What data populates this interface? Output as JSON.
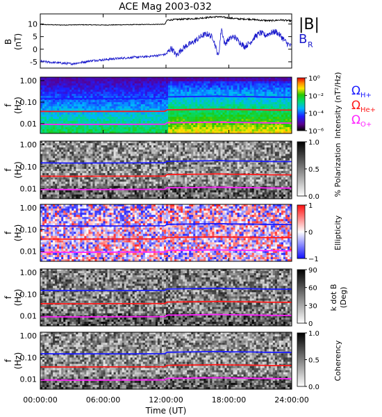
{
  "title": "ACE Mag 2003-032",
  "colors": {
    "b_total": "#000000",
    "b_r": "#1a1acc",
    "h_line": "#1a1aff",
    "he_line": "#ff1a1a",
    "o_line": "#ff22ff"
  },
  "x_axis": {
    "ticks": [
      "00:00:00",
      "06:00:00",
      "12:00:00",
      "18:00:00",
      "24:00:00"
    ],
    "label": "Time (UT)"
  },
  "chart_data": [
    {
      "type": "line",
      "panel": "magnetic-field",
      "ylabel": [
        "B",
        "(nT)"
      ],
      "y_ticks": [
        "10",
        "5",
        "0",
        "-5"
      ],
      "ylim": [
        -7.5,
        14
      ],
      "x_units": "hours UT",
      "xlim": [
        0,
        24
      ],
      "legend": [
        "|B|",
        "B_R"
      ],
      "series": [
        {
          "name": "|B|",
          "x": [
            0,
            2,
            4,
            6,
            8,
            10,
            11.9,
            12.1,
            13,
            14,
            15,
            16,
            17,
            18,
            19,
            20,
            21,
            22,
            23,
            24
          ],
          "y": [
            9.8,
            9.6,
            9.7,
            9.6,
            9.7,
            9.8,
            9.9,
            11.5,
            11.8,
            12.0,
            12.2,
            12.6,
            12.9,
            12.4,
            12.0,
            11.9,
            11.5,
            11.3,
            11.6,
            11.2
          ]
        },
        {
          "name": "B_R",
          "x": [
            0,
            1,
            2,
            3,
            4,
            5,
            6,
            7,
            8,
            9,
            10,
            11,
            12,
            12.5,
            13,
            13.5,
            14,
            14.5,
            15,
            15.5,
            16,
            16.5,
            17,
            17.3,
            17.6,
            18,
            18.5,
            19,
            19.5,
            20,
            20.5,
            21,
            21.5,
            22,
            22.5,
            23,
            23.5,
            24
          ],
          "y": [
            -4.8,
            -5.2,
            -5.5,
            -5.8,
            -5.2,
            -4.5,
            -4.2,
            -3.8,
            -3.5,
            -3.2,
            -3.0,
            -2.6,
            -2.0,
            0.5,
            -2.5,
            0.0,
            1.5,
            2.5,
            4.0,
            5.5,
            6.0,
            4.5,
            -3.0,
            8.5,
            2.0,
            4.0,
            5.0,
            3.0,
            1.0,
            2.5,
            5.0,
            6.5,
            5.5,
            6.5,
            7.0,
            5.0,
            2.5,
            1.0
          ]
        }
      ]
    },
    {
      "type": "heatmap",
      "panel": "intensity",
      "ylabel": [
        "f",
        "(Hz)"
      ],
      "y_ticks": [
        "1.00",
        "0.10",
        "0.01"
      ],
      "ylim": [
        0.003,
        1.5
      ],
      "y_scale": "log",
      "colorbar_label": "Intensity (nT²/Hz)",
      "colorbar_ticks": [
        "10⁰",
        "10⁻²",
        "10⁻⁴",
        "10⁻⁶"
      ],
      "colorbar_range": [
        1e-06,
        1
      ]
    },
    {
      "type": "heatmap",
      "panel": "polarization",
      "ylabel": [
        "f",
        "(Hz)"
      ],
      "y_ticks": [
        "1.00",
        "0.10",
        "0.01"
      ],
      "colorbar_label": "% Polarization",
      "colorbar_ticks": [
        "1.0",
        "0.5",
        "0.0"
      ],
      "colorbar_range": [
        0,
        1
      ]
    },
    {
      "type": "heatmap",
      "panel": "ellipticity",
      "ylabel": [
        "f",
        "(Hz)"
      ],
      "y_ticks": [
        "1.00",
        "0.10",
        "0.01"
      ],
      "colorbar_label": "Ellipticity",
      "colorbar_ticks": [
        "1",
        "0",
        "−1"
      ],
      "colorbar_range": [
        -1,
        1
      ]
    },
    {
      "type": "heatmap",
      "panel": "k-dot-b",
      "ylabel": [
        "f",
        "(Hz)"
      ],
      "y_ticks": [
        "1.00",
        "0.10",
        "0.01"
      ],
      "colorbar_label": [
        "k dot B",
        "(Deg)"
      ],
      "colorbar_ticks": [
        "90",
        "60",
        "30",
        "0"
      ],
      "colorbar_range": [
        0,
        90
      ]
    },
    {
      "type": "heatmap",
      "panel": "coherency",
      "ylabel": [
        "f",
        "(Hz)"
      ],
      "y_ticks": [
        "1.00",
        "0.10",
        "0.01"
      ],
      "colorbar_label": "Coherency",
      "colorbar_ticks": [
        "1.0",
        "0.5",
        "0.0"
      ],
      "colorbar_range": [
        0,
        1
      ]
    }
  ],
  "gyro_lines": {
    "legend": [
      "Ω_H+",
      "Ω_He+",
      "Ω_O+"
    ],
    "x": [
      0,
      3,
      6,
      9,
      11.9,
      12.1,
      14,
      16,
      17,
      18,
      20,
      22,
      24
    ],
    "omega_h_hz": [
      0.149,
      0.146,
      0.147,
      0.148,
      0.15,
      0.175,
      0.18,
      0.185,
      0.19,
      0.182,
      0.18,
      0.172,
      0.17
    ],
    "omega_he_hz": [
      0.037,
      0.0365,
      0.037,
      0.037,
      0.0375,
      0.044,
      0.045,
      0.046,
      0.047,
      0.0455,
      0.045,
      0.043,
      0.0425
    ],
    "omega_o_hz": [
      0.0093,
      0.0091,
      0.0092,
      0.0093,
      0.0094,
      0.011,
      0.0112,
      0.0116,
      0.0118,
      0.0114,
      0.0112,
      0.0108,
      0.0106
    ]
  }
}
